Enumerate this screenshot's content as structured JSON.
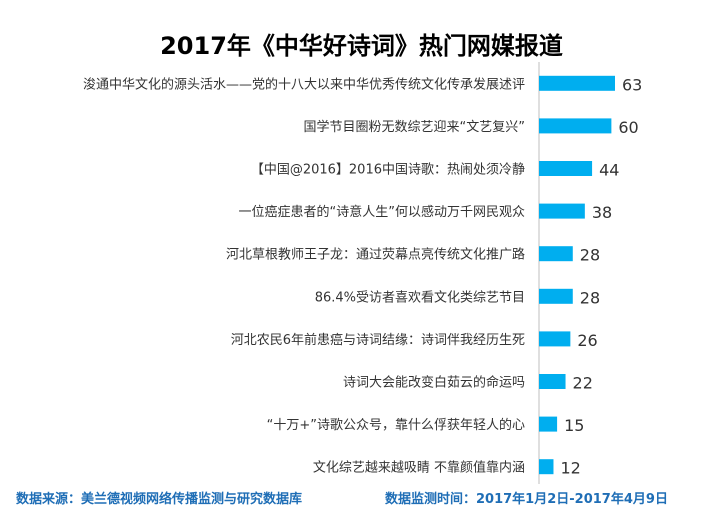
{
  "title": "2017年《中华好诗词》热门网媒报道",
  "footer": {
    "source": "数据来源：美兰德视频网络传播监测与研究数据库",
    "period": "数据监测时间：2017年1月2日-2017年4月9日"
  },
  "colors": {
    "bar": "#00aeef",
    "footer_text": "#1f6eb6",
    "label_text": "#333333",
    "axis": "#bfbfbf"
  },
  "chart_data": {
    "type": "bar",
    "orientation": "horizontal",
    "title": "2017年《中华好诗词》热门网媒报道",
    "categories": [
      "浚通中华文化的源头活水——党的十八大以来中华优秀传统文化传承发展述评",
      "国学节目圈粉无数综艺迎来“文艺复兴”",
      "【中国@2016】2016中国诗歌：热闹处须冷静",
      "一位癌症患者的“诗意人生”何以感动万千网民观众",
      "河北草根教师王子龙：通过荧幕点亮传统文化推广路",
      "86.4%受访者喜欢看文化类综艺节目",
      "河北农民6年前患癌与诗词结缘：诗词伴我经历生死",
      "诗词大会能改变白茹云的命运吗",
      "“十万+”诗歌公众号，靠什么俘获年轻人的心",
      "文化综艺越来越吸睛 不靠颜值靠内涵"
    ],
    "values": [
      63,
      60,
      44,
      38,
      28,
      28,
      26,
      22,
      15,
      12
    ],
    "xlim": [
      0,
      63
    ],
    "grid": false,
    "legend": "none"
  }
}
